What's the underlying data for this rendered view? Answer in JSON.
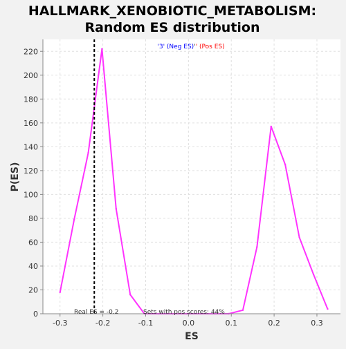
{
  "chart_data": {
    "type": "line",
    "title_line1": "HALLMARK_XENOBIOTIC_METABOLISM:",
    "title_line2": "Random ES distribution",
    "xlabel": "ES",
    "ylabel": "P(ES)",
    "xlim": [
      -0.34,
      0.355
    ],
    "ylim": [
      0,
      230
    ],
    "x_ticks": [
      -0.3,
      -0.2,
      -0.1,
      0.0,
      0.1,
      0.2,
      0.3
    ],
    "x_tick_labels": [
      "-0.3",
      "-0.2",
      "-0.1",
      "0.0",
      "0.1",
      "0.2",
      "0.3"
    ],
    "y_ticks": [
      0,
      20,
      40,
      60,
      80,
      100,
      120,
      140,
      160,
      180,
      200,
      220
    ],
    "y_tick_labels": [
      "0",
      "20",
      "40",
      "60",
      "80",
      "100",
      "120",
      "140",
      "160",
      "180",
      "200",
      "220"
    ],
    "grid": true,
    "series": [
      {
        "color": "#ff33ff",
        "x": [
          -0.3,
          -0.267,
          -0.234,
          -0.202,
          -0.169,
          -0.136,
          -0.103,
          -0.07,
          -0.037,
          -0.004,
          0.029,
          0.062,
          0.094,
          0.127,
          0.16,
          0.193,
          0.226,
          0.259,
          0.292,
          0.325
        ],
        "y": [
          18,
          79,
          135,
          222,
          88,
          16,
          0,
          0,
          0,
          0,
          0,
          0,
          0,
          3,
          56,
          157,
          125,
          64,
          33,
          4
        ]
      }
    ],
    "real_es": -0.22,
    "real_es_label": "Real ES = -0.2",
    "pos_scores_label": "Sets with pos scores: 44%",
    "legend": {
      "neg_text": "'3' (Neg ES)",
      "sep_text": "'",
      "pos_text": "' (Pos ES)",
      "neg_color": "#0000ff",
      "pos_color": "#ff0000",
      "position": "top-center"
    }
  }
}
